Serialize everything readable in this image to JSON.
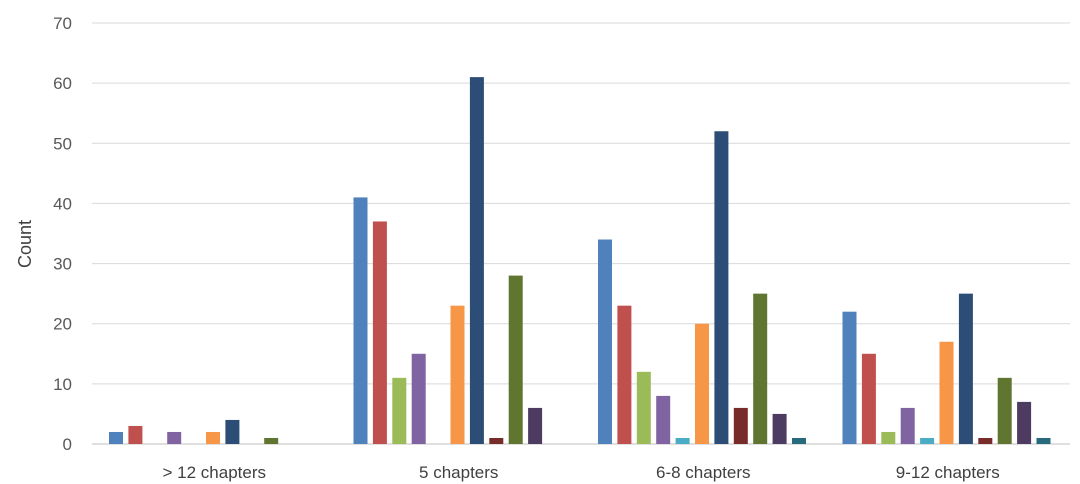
{
  "chart_data": {
    "type": "bar",
    "title": "",
    "xlabel": "",
    "ylabel": "Count",
    "ylim": [
      0,
      70
    ],
    "yticks": [
      0,
      10,
      20,
      30,
      40,
      50,
      60,
      70
    ],
    "grid": true,
    "legend": "none",
    "categories": [
      "> 12 chapters",
      "5 chapters",
      "6-8 chapters",
      "9-12 chapters"
    ],
    "series": [
      {
        "color": "#4F81BD",
        "values": [
          2,
          41,
          34,
          22
        ]
      },
      {
        "color": "#C0504D",
        "values": [
          3,
          37,
          23,
          15
        ]
      },
      {
        "color": "#9BBB59",
        "values": [
          0,
          11,
          12,
          2
        ]
      },
      {
        "color": "#8064A2",
        "values": [
          2,
          15,
          8,
          6
        ]
      },
      {
        "color": "#4BACC6",
        "values": [
          0,
          0,
          1,
          1
        ]
      },
      {
        "color": "#F79646",
        "values": [
          2,
          23,
          20,
          17
        ]
      },
      {
        "color": "#2C4D75",
        "values": [
          4,
          61,
          52,
          25
        ]
      },
      {
        "color": "#772C2A",
        "values": [
          0,
          1,
          6,
          1
        ]
      },
      {
        "color": "#5F7530",
        "values": [
          1,
          28,
          25,
          11
        ]
      },
      {
        "color": "#4D3B62",
        "values": [
          0,
          6,
          5,
          7
        ]
      },
      {
        "color": "#276A7C",
        "values": [
          0,
          0,
          1,
          1
        ]
      }
    ]
  }
}
